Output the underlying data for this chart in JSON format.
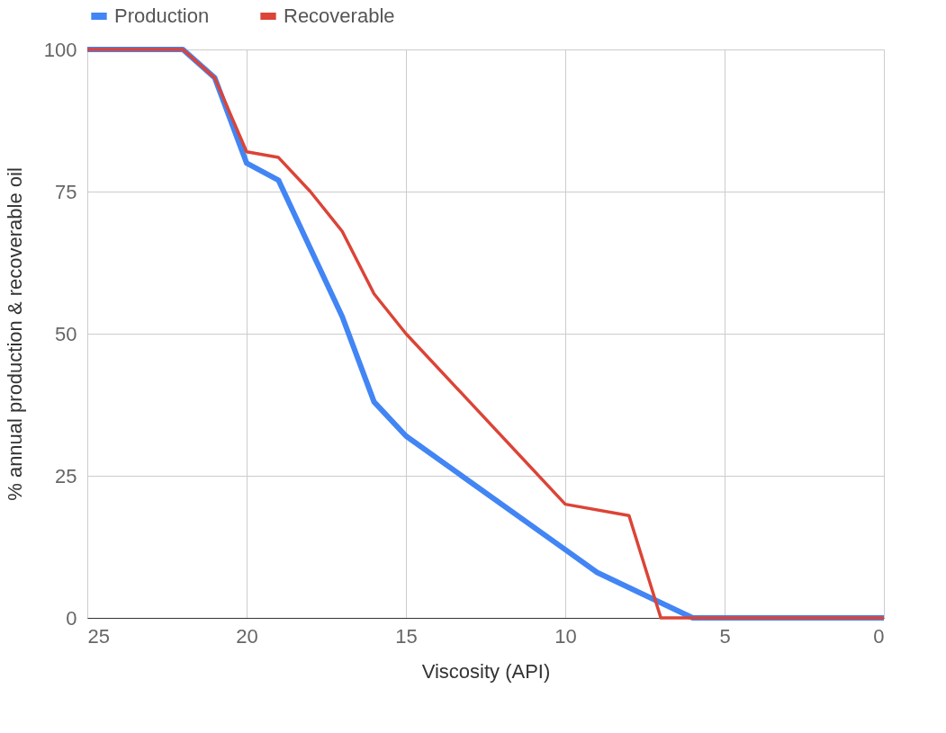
{
  "chart_data": {
    "type": "line",
    "xlabel": "Viscosity (API)",
    "ylabel": "% annual production & recoverable oil",
    "xlim": [
      25,
      0
    ],
    "xticks": [
      25,
      20,
      15,
      10,
      5,
      0
    ],
    "ylim": [
      0,
      100
    ],
    "yticks": [
      0,
      25,
      50,
      75,
      100
    ],
    "grid": true,
    "legend": "top",
    "marker": "none",
    "line_style": "solid",
    "series": [
      {
        "name": "Production",
        "color": "#4285f4",
        "x": [
          25,
          22,
          21,
          20,
          19,
          17,
          16,
          15,
          10,
          9,
          6,
          0
        ],
        "values": [
          100,
          100,
          95,
          80,
          77,
          53,
          38,
          32,
          12,
          8,
          0,
          0
        ]
      },
      {
        "name": "Recoverable",
        "color": "#db4437",
        "x": [
          25,
          22,
          21,
          20,
          19,
          18,
          17,
          16,
          15,
          10,
          8,
          7,
          0
        ],
        "values": [
          100,
          100,
          95,
          82,
          81,
          75,
          68,
          57,
          50,
          20,
          18,
          0,
          0
        ]
      }
    ]
  }
}
